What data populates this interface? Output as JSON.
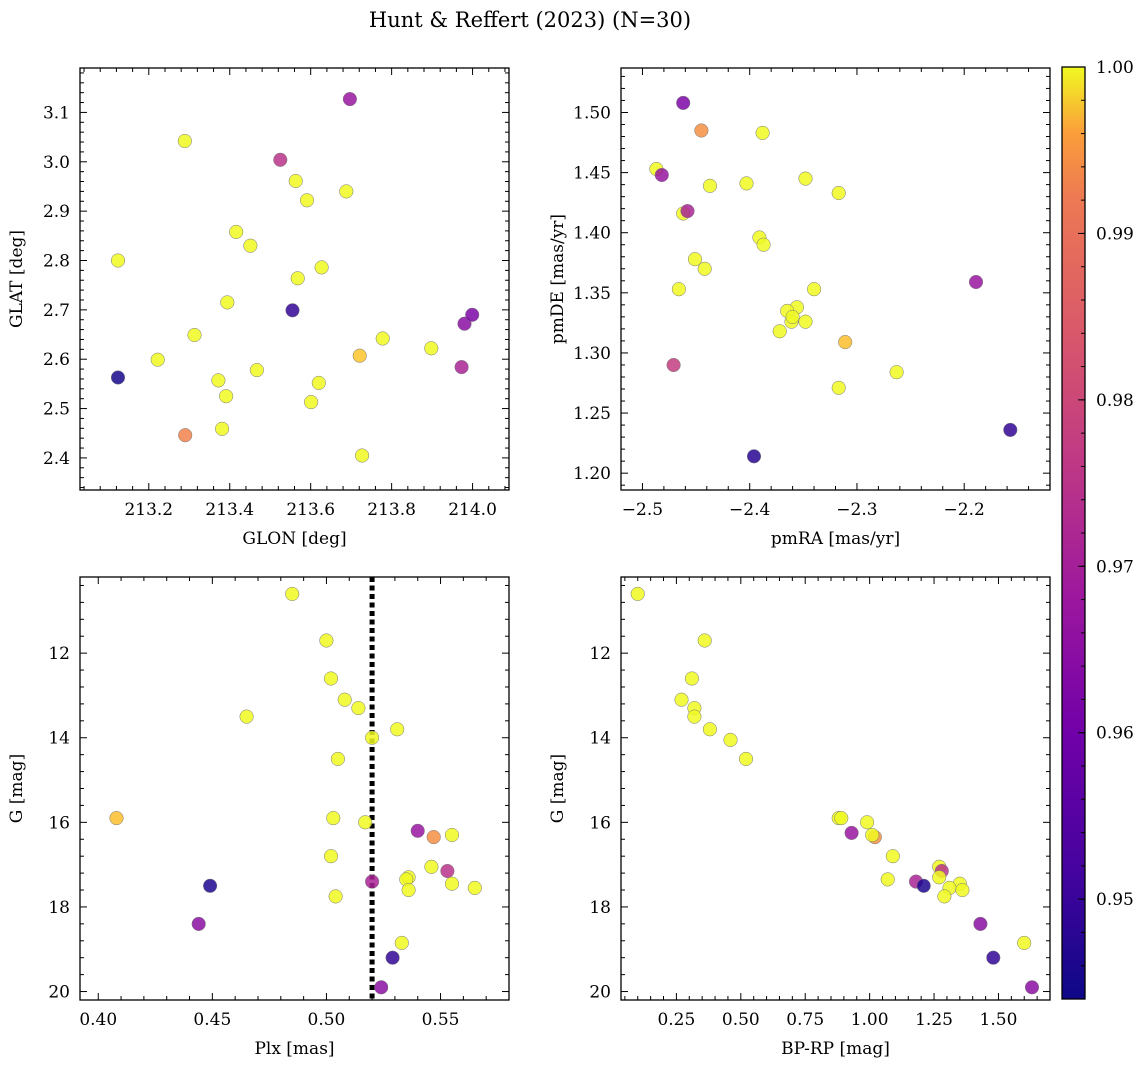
{
  "title": "Hunt & Reffert (2023) (N=30)",
  "colorbar": {
    "min": 0.944,
    "max": 1.0,
    "ticks": [
      0.95,
      0.96,
      0.97,
      0.98,
      0.99,
      1.0
    ],
    "tick_labels": [
      "0.95",
      "0.96",
      "0.97",
      "0.98",
      "0.99",
      "1.00"
    ],
    "colormap": "plasma",
    "colors": [
      "#0d0887",
      "#6a00a8",
      "#b12a90",
      "#e16462",
      "#fca636",
      "#f0f921"
    ]
  },
  "chart_data": [
    {
      "type": "scatter",
      "xlabel": "GLON [deg]",
      "ylabel": "GLAT [deg]",
      "xlim": [
        213.03,
        214.09
      ],
      "ylim": [
        2.335,
        3.19
      ],
      "y_inverted": false,
      "xticks": [
        213.2,
        213.4,
        213.6,
        213.8,
        214.0
      ],
      "xtick_labels": [
        "213.2",
        "213.4",
        "213.6",
        "213.8",
        "214.0"
      ],
      "yticks": [
        2.4,
        2.5,
        2.6,
        2.7,
        2.8,
        2.9,
        3.0,
        3.1
      ],
      "ytick_labels": [
        "2.4",
        "2.5",
        "2.6",
        "2.7",
        "2.8",
        "2.9",
        "3.0",
        "3.1"
      ],
      "x": [
        213.124,
        213.124,
        213.222,
        213.289,
        213.29,
        213.313,
        213.372,
        213.381,
        213.391,
        213.394,
        213.416,
        213.451,
        213.467,
        213.525,
        213.555,
        213.563,
        213.568,
        213.591,
        213.601,
        213.62,
        213.627,
        213.688,
        213.697,
        213.721,
        213.727,
        213.778,
        213.898,
        213.973,
        213.98,
        213.999
      ],
      "y": [
        2.8,
        2.563,
        2.599,
        3.042,
        2.446,
        2.649,
        2.557,
        2.459,
        2.525,
        2.715,
        2.858,
        2.83,
        2.578,
        3.004,
        2.699,
        2.961,
        2.764,
        2.922,
        2.513,
        2.552,
        2.786,
        2.94,
        3.127,
        2.607,
        2.405,
        2.642,
        2.622,
        2.584,
        2.672,
        2.69
      ],
      "prob": [
        1.0,
        0.945,
        1.0,
        1.0,
        0.983,
        1.0,
        1.0,
        1.0,
        1.0,
        1.0,
        1.0,
        1.0,
        1.0,
        0.968,
        0.948,
        1.0,
        1.0,
        1.0,
        1.0,
        1.0,
        1.0,
        1.0,
        0.962,
        0.993,
        1.0,
        1.0,
        1.0,
        0.965,
        0.96,
        0.958
      ]
    },
    {
      "type": "scatter",
      "xlabel": "pmRA [mas/yr]",
      "ylabel": "pmDE [mas/yr]",
      "xlim": [
        -2.52,
        -2.12
      ],
      "ylim": [
        1.186,
        1.537
      ],
      "y_inverted": false,
      "xticks": [
        -2.5,
        -2.4,
        -2.3,
        -2.2
      ],
      "xtick_labels": [
        "−2.5",
        "−2.4",
        "−2.3",
        "−2.2"
      ],
      "yticks": [
        1.2,
        1.25,
        1.3,
        1.35,
        1.4,
        1.45,
        1.5
      ],
      "ytick_labels": [
        "1.20",
        "1.25",
        "1.30",
        "1.35",
        "1.40",
        "1.45",
        "1.50"
      ],
      "x": [
        -2.462,
        -2.445,
        -2.388,
        -2.487,
        -2.482,
        -2.437,
        -2.403,
        -2.348,
        -2.317,
        -2.462,
        -2.458,
        -2.391,
        -2.387,
        -2.451,
        -2.442,
        -2.466,
        -2.34,
        -2.356,
        -2.365,
        -2.361,
        -2.348,
        -2.372,
        -2.311,
        -2.471,
        -2.263,
        -2.317,
        -2.189,
        -2.396,
        -2.157,
        -2.36
      ],
      "y": [
        1.508,
        1.485,
        1.483,
        1.453,
        1.448,
        1.439,
        1.441,
        1.445,
        1.433,
        1.416,
        1.418,
        1.396,
        1.39,
        1.378,
        1.37,
        1.353,
        1.353,
        1.338,
        1.335,
        1.326,
        1.326,
        1.318,
        1.309,
        1.29,
        1.284,
        1.271,
        1.359,
        1.214,
        1.236,
        1.33
      ],
      "prob": [
        0.958,
        0.985,
        1.0,
        1.0,
        0.962,
        1.0,
        1.0,
        1.0,
        1.0,
        1.0,
        0.965,
        1.0,
        1.0,
        1.0,
        1.0,
        1.0,
        1.0,
        1.0,
        1.0,
        1.0,
        1.0,
        1.0,
        0.992,
        0.97,
        1.0,
        1.0,
        0.962,
        0.947,
        0.948,
        1.0
      ]
    },
    {
      "type": "scatter",
      "xlabel": "Plx [mas]",
      "ylabel": "G [mag]",
      "xlim": [
        0.392,
        0.58
      ],
      "ylim": [
        20.2,
        10.2
      ],
      "y_inverted": true,
      "vline": {
        "x": 0.52,
        "style": "dotted",
        "color": "#000000"
      },
      "xticks": [
        0.4,
        0.45,
        0.5,
        0.55
      ],
      "xtick_labels": [
        "0.40",
        "0.45",
        "0.50",
        "0.55"
      ],
      "yticks": [
        12,
        14,
        16,
        18,
        20
      ],
      "ytick_labels": [
        "12",
        "14",
        "16",
        "18",
        "20"
      ],
      "x": [
        0.485,
        0.5,
        0.502,
        0.508,
        0.514,
        0.465,
        0.531,
        0.52,
        0.505,
        0.408,
        0.503,
        0.517,
        0.54,
        0.547,
        0.555,
        0.502,
        0.546,
        0.553,
        0.536,
        0.535,
        0.52,
        0.555,
        0.565,
        0.536,
        0.449,
        0.504,
        0.444,
        0.533,
        0.529,
        0.524
      ],
      "y": [
        10.6,
        11.7,
        12.6,
        13.1,
        13.3,
        13.5,
        13.8,
        14.0,
        14.5,
        15.9,
        15.9,
        16.0,
        16.2,
        16.35,
        16.3,
        16.8,
        17.05,
        17.15,
        17.3,
        17.35,
        17.4,
        17.45,
        17.55,
        17.6,
        17.5,
        17.75,
        18.4,
        18.85,
        19.2,
        19.9
      ],
      "prob": [
        1.0,
        1.0,
        1.0,
        1.0,
        1.0,
        1.0,
        1.0,
        1.0,
        1.0,
        0.992,
        1.0,
        1.0,
        0.962,
        0.985,
        1.0,
        1.0,
        1.0,
        0.968,
        1.0,
        1.0,
        0.965,
        1.0,
        1.0,
        1.0,
        0.946,
        1.0,
        0.96,
        1.0,
        0.948,
        0.96
      ]
    },
    {
      "type": "scatter",
      "xlabel": "BP-RP [mag]",
      "ylabel": "G [mag]",
      "xlim": [
        0.035,
        1.7
      ],
      "ylim": [
        20.2,
        10.2
      ],
      "y_inverted": true,
      "xticks": [
        0.25,
        0.5,
        0.75,
        1.0,
        1.25,
        1.5
      ],
      "xtick_labels": [
        "0.25",
        "0.50",
        "0.75",
        "1.00",
        "1.25",
        "1.50"
      ],
      "yticks": [
        12,
        14,
        16,
        18,
        20
      ],
      "ytick_labels": [
        "12",
        "14",
        "16",
        "18",
        "20"
      ],
      "x": [
        0.1,
        0.36,
        0.31,
        0.27,
        0.32,
        0.32,
        0.38,
        0.46,
        0.52,
        0.88,
        0.89,
        0.99,
        0.93,
        1.02,
        1.01,
        1.09,
        1.27,
        1.28,
        1.27,
        1.07,
        1.18,
        1.35,
        1.31,
        1.29,
        1.21,
        1.36,
        1.43,
        1.6,
        1.48,
        1.63
      ],
      "y": [
        10.6,
        11.7,
        12.6,
        13.1,
        13.3,
        13.5,
        13.8,
        14.05,
        14.5,
        15.9,
        15.9,
        16.0,
        16.25,
        16.35,
        16.3,
        16.8,
        17.05,
        17.15,
        17.3,
        17.35,
        17.4,
        17.45,
        17.55,
        17.75,
        17.5,
        17.6,
        18.4,
        18.85,
        19.2,
        19.9
      ],
      "prob": [
        1.0,
        1.0,
        1.0,
        1.0,
        1.0,
        1.0,
        1.0,
        1.0,
        1.0,
        1.0,
        1.0,
        1.0,
        0.962,
        0.985,
        1.0,
        1.0,
        1.0,
        0.968,
        1.0,
        1.0,
        0.965,
        1.0,
        1.0,
        1.0,
        0.946,
        1.0,
        0.96,
        1.0,
        0.948,
        0.96
      ]
    }
  ]
}
